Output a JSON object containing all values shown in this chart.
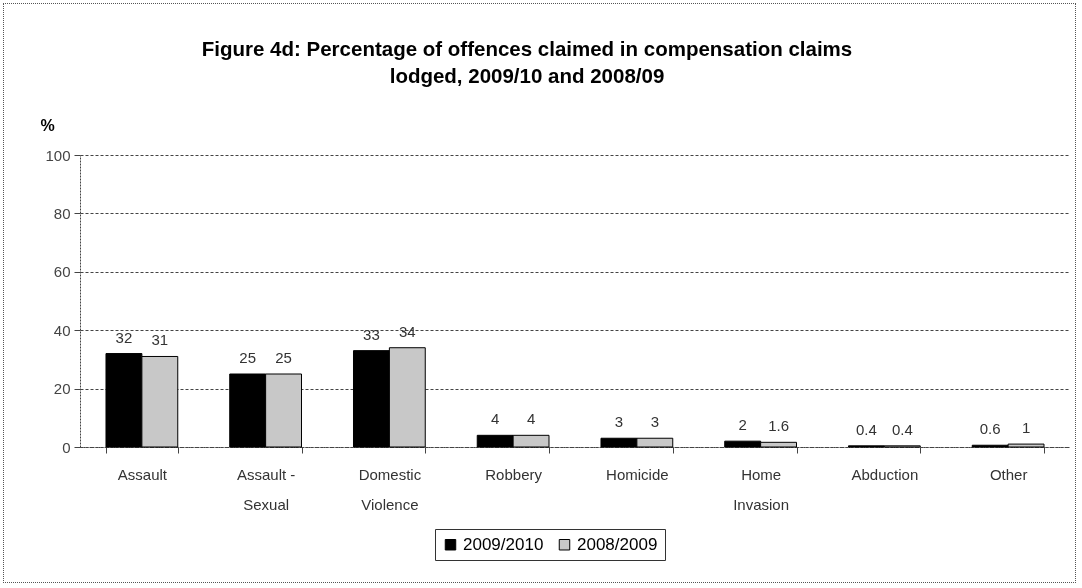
{
  "chart_data": {
    "type": "bar",
    "title": "Figure 4d: Percentage of offences claimed in compensation claims lodged, 2009/10 and 2008/09",
    "ylabel": "%",
    "categories": [
      "Assault",
      "Assault - Sexual",
      "Domestic Violence",
      "Robbery",
      "Homicide",
      "Home Invasion",
      "Abduction",
      "Other"
    ],
    "series": [
      {
        "name": "2009/2010",
        "color": "#000000",
        "values": [
          32,
          25,
          33,
          4,
          3,
          2,
          0.4,
          0.6
        ]
      },
      {
        "name": "2008/2009",
        "color": "#c8c8c8",
        "values": [
          31,
          25,
          34,
          4,
          3,
          1.6,
          0.4,
          1
        ]
      }
    ],
    "ylim": [
      0,
      100
    ],
    "yticks": [
      0,
      20,
      40,
      60,
      80,
      100
    ],
    "grid": "y",
    "legend": "bottom",
    "data_labels": true
  }
}
